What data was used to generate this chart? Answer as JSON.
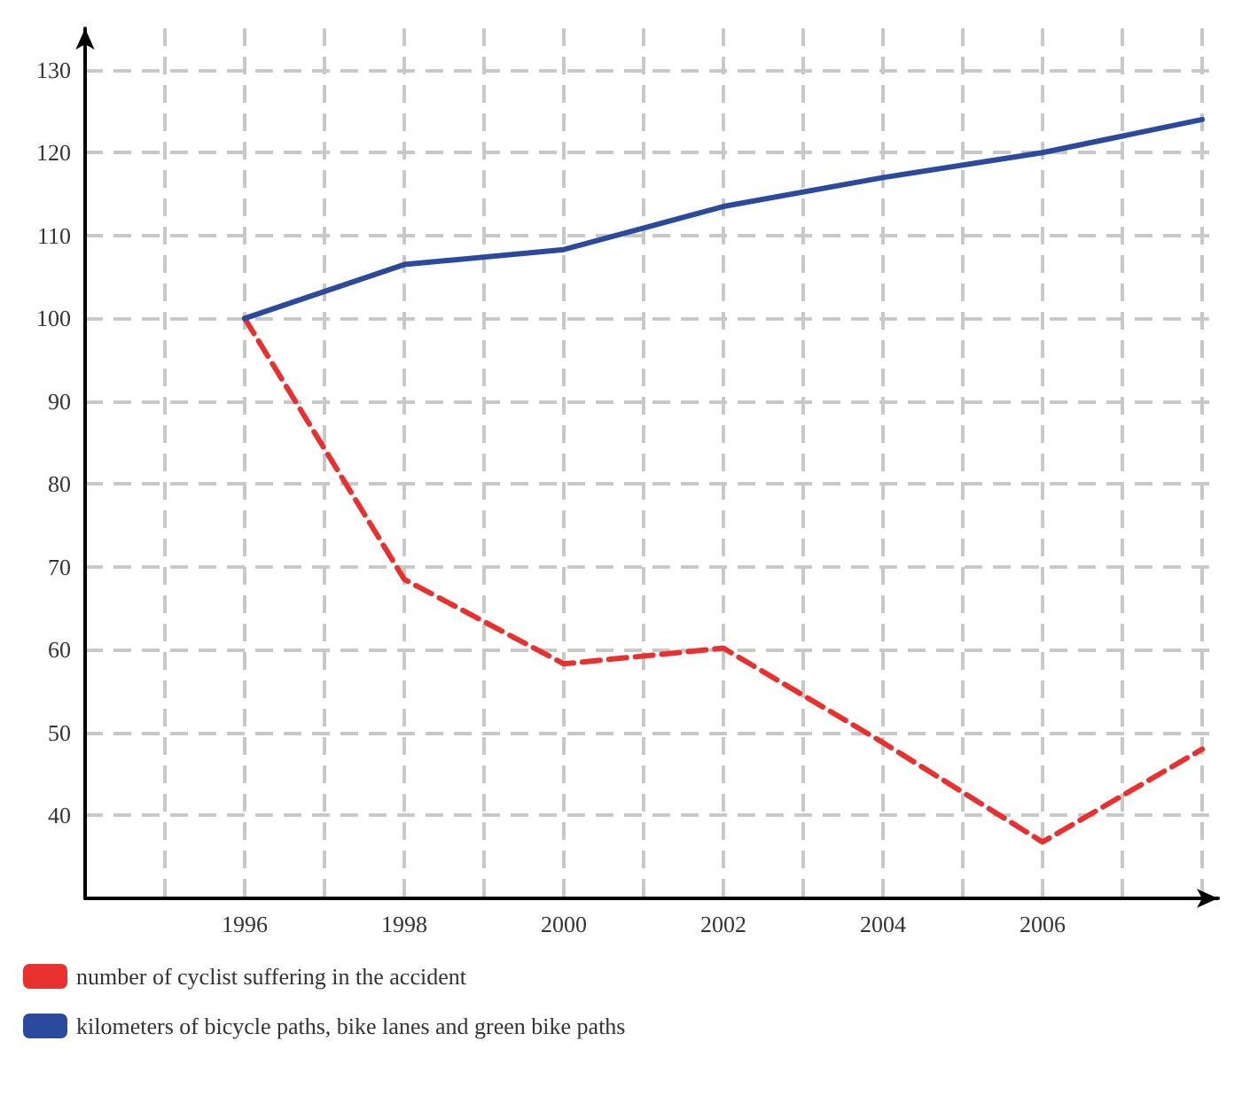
{
  "chart_data": {
    "type": "line",
    "x": [
      1996,
      1998,
      2000,
      2002,
      2004,
      2006,
      2008
    ],
    "series": [
      {
        "name": "number of cyclist suffering in the accident",
        "color": "#e8312f",
        "line_style": "dashed",
        "values": [
          100,
          68.5,
          58.3,
          60.2,
          48.8,
          36.8,
          48
        ]
      },
      {
        "name": "kilometers of bicycle paths, bike lanes and green bike paths",
        "color": "#2b4a9e",
        "line_style": "solid",
        "values": [
          100,
          106.5,
          108.3,
          113.5,
          117,
          120,
          124
        ]
      }
    ],
    "xlim": [
      1994,
      2008.2
    ],
    "ylim": [
      30,
      135
    ],
    "xticks": [
      {
        "value": 1995,
        "label": null
      },
      1996,
      {
        "value": 1997,
        "label": null
      },
      1998,
      {
        "value": 1999,
        "label": null
      },
      2000,
      {
        "value": 2001,
        "label": null
      },
      2002,
      {
        "value": 2003,
        "label": null
      },
      2004,
      {
        "value": 2005,
        "label": null
      },
      2006,
      {
        "value": 2007,
        "label": null
      },
      {
        "value": 2008,
        "label": null
      }
    ],
    "yticks": [
      40,
      50,
      60,
      70,
      80,
      90,
      100,
      110,
      120,
      130
    ],
    "grid": true,
    "legend": "bottom left",
    "marker": "none"
  }
}
